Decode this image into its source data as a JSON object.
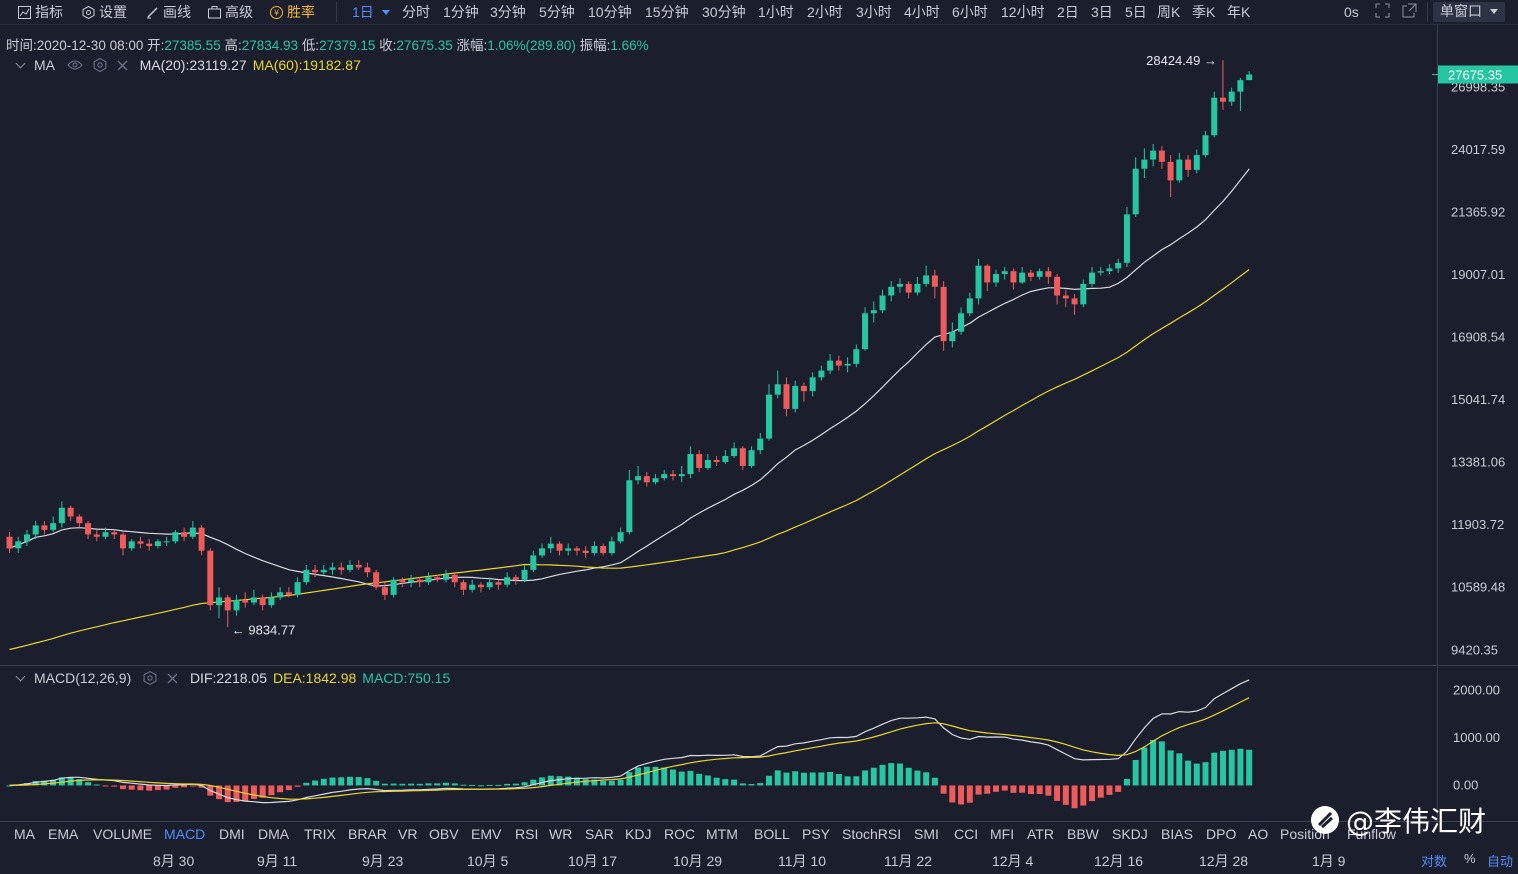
{
  "toolbar": {
    "indicators": "指标",
    "settings": "设置",
    "draw": "画线",
    "advanced": "高级",
    "winrate": "胜率",
    "interval": "1日",
    "periods": [
      "分时",
      "1分钟",
      "3分钟",
      "5分钟",
      "10分钟",
      "15分钟",
      "30分钟",
      "1小时",
      "2小时",
      "3小时",
      "4小时",
      "6小时",
      "12小时",
      "2日",
      "3日",
      "5日",
      "周K",
      "季K",
      "年K"
    ],
    "countdown": "0s",
    "window_mode": "单窗口"
  },
  "info": {
    "time_label": "时间:",
    "time": "2020-12-30 08:00",
    "open_label": "开:",
    "open": "27385.55",
    "high_label": "高:",
    "high": "27834.93",
    "low_label": "低:",
    "low": "27379.15",
    "close_label": "收:",
    "close": "27675.35",
    "change_label": "涨幅:",
    "change": "1.06%(289.80)",
    "amp_label": "振幅:",
    "amp": "1.66%"
  },
  "ma_legend": {
    "name": "MA",
    "ma20": "MA(20):23119.27",
    "ma60": "MA(60):19182.87"
  },
  "macd_legend": {
    "name": "MACD(12,26,9)",
    "dif": "DIF:2218.05",
    "dea": "DEA:1842.98",
    "macd": "MACD:750.15"
  },
  "colors": {
    "up": "#26c6a2",
    "down": "#ef5a5a",
    "ma20": "#d9dbe3",
    "ma60": "#e8d72a",
    "accent": "#4f8ff7",
    "background": "#1b1e2d"
  },
  "chart_data": [
    {
      "type": "candlestick",
      "title": "",
      "y_ticks": [
        9420.35,
        10589.48,
        11903.72,
        13381.06,
        15041.74,
        16908.54,
        19007.01,
        21365.92,
        24017.59,
        26998.35
      ],
      "y_ticks_labels": [
        "9420.35",
        "10589.48",
        "11903.72",
        "13381.06",
        "15041.74",
        "16908.54",
        "19007.01",
        "21365.92",
        "24017.59",
        "26998.35"
      ],
      "ylim": [
        9250,
        29300
      ],
      "scale": "log",
      "x_ticks": [
        "8月 30",
        "9月 11",
        "9月 23",
        "10月 5",
        "10月 17",
        "10月 29",
        "11月 10",
        "11月 22",
        "12月 4",
        "12月 16",
        "12月 28",
        "1月 9"
      ],
      "last_price_label": "27675.35",
      "high_marker": "28424.49 →",
      "low_marker": "← 9834.77",
      "series": [
        {
          "name": "MA(20)",
          "last": 23119.27
        },
        {
          "name": "MA(60)",
          "last": 19182.87
        }
      ],
      "candles": [
        [
          11650,
          11400,
          11750,
          11300
        ],
        [
          11400,
          11550,
          11650,
          11300
        ],
        [
          11550,
          11700,
          11800,
          11450
        ],
        [
          11700,
          11900,
          12000,
          11600
        ],
        [
          11900,
          11800,
          12000,
          11700
        ],
        [
          11800,
          11950,
          12100,
          11750
        ],
        [
          11950,
          12300,
          12450,
          11850
        ],
        [
          12300,
          12100,
          12350,
          12000
        ],
        [
          12100,
          11950,
          12150,
          11850
        ],
        [
          11950,
          11700,
          12000,
          11600
        ],
        [
          11700,
          11650,
          11800,
          11550
        ],
        [
          11650,
          11750,
          11850,
          11600
        ],
        [
          11750,
          11700,
          11800,
          11600
        ],
        [
          11700,
          11400,
          11750,
          11250
        ],
        [
          11400,
          11550,
          11600,
          11350
        ],
        [
          11550,
          11500,
          11650,
          11400
        ],
        [
          11500,
          11450,
          11600,
          11350
        ],
        [
          11450,
          11550,
          11600,
          11400
        ],
        [
          11550,
          11550,
          11650,
          11450
        ],
        [
          11550,
          11750,
          11800,
          11500
        ],
        [
          11750,
          11650,
          11850,
          11550
        ],
        [
          11650,
          11850,
          12000,
          11600
        ],
        [
          11850,
          11350,
          11900,
          11250
        ],
        [
          11350,
          10250,
          11400,
          10150
        ],
        [
          10250,
          10400,
          10600,
          10000
        ],
        [
          10400,
          10150,
          10450,
          9834
        ],
        [
          10150,
          10350,
          10450,
          10050
        ],
        [
          10350,
          10300,
          10500,
          10200
        ],
        [
          10300,
          10400,
          10550,
          10250
        ],
        [
          10400,
          10250,
          10450,
          10150
        ],
        [
          10250,
          10400,
          10500,
          10200
        ],
        [
          10400,
          10500,
          10600,
          10350
        ],
        [
          10500,
          10450,
          10600,
          10400
        ],
        [
          10450,
          10700,
          10800,
          10400
        ],
        [
          10700,
          10950,
          11050,
          10650
        ],
        [
          10950,
          10900,
          11050,
          10800
        ],
        [
          10900,
          10950,
          11050,
          10850
        ],
        [
          10950,
          11000,
          11100,
          10850
        ],
        [
          11000,
          10950,
          11100,
          10850
        ],
        [
          10950,
          11050,
          11150,
          10900
        ],
        [
          11050,
          11000,
          11150,
          10950
        ],
        [
          11000,
          10900,
          11100,
          10800
        ],
        [
          10900,
          10600,
          10950,
          10550
        ],
        [
          10600,
          10450,
          10700,
          10350
        ],
        [
          10450,
          10750,
          10800,
          10400
        ],
        [
          10750,
          10700,
          10800,
          10600
        ],
        [
          10700,
          10750,
          10850,
          10600
        ],
        [
          10750,
          10700,
          10800,
          10600
        ],
        [
          10700,
          10800,
          10900,
          10650
        ],
        [
          10800,
          10750,
          10850,
          10700
        ],
        [
          10750,
          10850,
          10950,
          10700
        ],
        [
          10850,
          10700,
          10900,
          10600
        ],
        [
          10700,
          10550,
          10750,
          10450
        ],
        [
          10550,
          10650,
          10750,
          10500
        ],
        [
          10650,
          10600,
          10700,
          10500
        ],
        [
          10600,
          10700,
          10800,
          10550
        ],
        [
          10700,
          10650,
          10750,
          10550
        ],
        [
          10650,
          10800,
          10900,
          10600
        ],
        [
          10800,
          10750,
          10850,
          10650
        ],
        [
          10750,
          10950,
          11050,
          10700
        ],
        [
          10950,
          11250,
          11350,
          10900
        ],
        [
          11250,
          11400,
          11500,
          11200
        ],
        [
          11400,
          11500,
          11650,
          11300
        ],
        [
          11500,
          11350,
          11550,
          11250
        ],
        [
          11350,
          11400,
          11500,
          11250
        ],
        [
          11400,
          11350,
          11450,
          11250
        ],
        [
          11350,
          11300,
          11450,
          11200
        ],
        [
          11300,
          11450,
          11550,
          11250
        ],
        [
          11450,
          11300,
          11500,
          11250
        ],
        [
          11300,
          11550,
          11650,
          11250
        ],
        [
          11550,
          11750,
          11850,
          11500
        ],
        [
          11750,
          12950,
          13200,
          11700
        ],
        [
          12950,
          13050,
          13300,
          12850
        ],
        [
          13050,
          12900,
          13150,
          12800
        ],
        [
          12900,
          13000,
          13100,
          12850
        ],
        [
          13000,
          13100,
          13200,
          12950
        ],
        [
          13100,
          13050,
          13200,
          12950
        ],
        [
          13050,
          13100,
          13300,
          12900
        ],
        [
          13100,
          13600,
          13800,
          13000
        ],
        [
          13600,
          13250,
          13700,
          13150
        ],
        [
          13250,
          13450,
          13600,
          13200
        ],
        [
          13450,
          13400,
          13550,
          13300
        ],
        [
          13400,
          13550,
          13700,
          13350
        ],
        [
          13550,
          13750,
          13900,
          13500
        ],
        [
          13750,
          13300,
          13800,
          13200
        ],
        [
          13300,
          13700,
          13800,
          13250
        ],
        [
          13700,
          14000,
          14150,
          13600
        ],
        [
          14000,
          15200,
          15500,
          13950
        ],
        [
          15200,
          15500,
          15900,
          15100
        ],
        [
          15500,
          14800,
          15700,
          14600
        ],
        [
          14800,
          15450,
          15600,
          14700
        ],
        [
          15450,
          15300,
          15550,
          15000
        ],
        [
          15300,
          15700,
          15850,
          15150
        ],
        [
          15700,
          15900,
          16050,
          15600
        ],
        [
          15900,
          16200,
          16400,
          15800
        ],
        [
          16200,
          16050,
          16350,
          15900
        ],
        [
          16050,
          16100,
          16300,
          15850
        ],
        [
          16100,
          16550,
          16700,
          16000
        ],
        [
          16550,
          17700,
          17900,
          16500
        ],
        [
          17700,
          17800,
          18100,
          17400
        ],
        [
          17800,
          18300,
          18500,
          17700
        ],
        [
          18300,
          18600,
          18800,
          18100
        ],
        [
          18600,
          18700,
          18900,
          18400
        ],
        [
          18700,
          18400,
          18800,
          18200
        ],
        [
          18400,
          18700,
          18950,
          18300
        ],
        [
          18700,
          19000,
          19350,
          18600
        ],
        [
          19000,
          18600,
          19200,
          18200
        ],
        [
          18600,
          16800,
          18800,
          16500
        ],
        [
          16800,
          17100,
          17400,
          16600
        ],
        [
          17100,
          17700,
          17900,
          17000
        ],
        [
          17700,
          18200,
          18400,
          17600
        ],
        [
          18200,
          19350,
          19600,
          18000
        ],
        [
          19350,
          18750,
          19400,
          18450
        ],
        [
          18750,
          19050,
          19200,
          18600
        ],
        [
          19050,
          19150,
          19300,
          18850
        ],
        [
          19150,
          18750,
          19250,
          18500
        ],
        [
          18750,
          19100,
          19300,
          18700
        ],
        [
          19100,
          18950,
          19200,
          18800
        ],
        [
          18950,
          19150,
          19250,
          18850
        ],
        [
          19150,
          18950,
          19300,
          18700
        ],
        [
          18950,
          18300,
          19050,
          18000
        ],
        [
          18300,
          18200,
          18500,
          17900
        ],
        [
          18200,
          18000,
          18350,
          17650
        ],
        [
          18000,
          18700,
          18850,
          17900
        ],
        [
          18700,
          19100,
          19300,
          18600
        ],
        [
          19100,
          19150,
          19300,
          19000
        ],
        [
          19150,
          19250,
          19400,
          19050
        ],
        [
          19250,
          19450,
          19600,
          19100
        ],
        [
          19450,
          21300,
          21600,
          19300
        ],
        [
          21300,
          23200,
          23700,
          21200
        ],
        [
          23200,
          23600,
          24100,
          22800
        ],
        [
          23600,
          24000,
          24300,
          23300
        ],
        [
          24000,
          23500,
          24200,
          23200
        ],
        [
          23500,
          22700,
          23800,
          22000
        ],
        [
          22700,
          23600,
          23900,
          22600
        ],
        [
          23600,
          23150,
          23800,
          22850
        ],
        [
          23150,
          23800,
          24050,
          23000
        ],
        [
          23800,
          24700,
          24900,
          23700
        ],
        [
          24700,
          26500,
          26800,
          24600
        ],
        [
          26500,
          26300,
          28424,
          25900
        ],
        [
          26300,
          26800,
          27000,
          26100
        ],
        [
          26800,
          27385,
          27500,
          25850
        ],
        [
          27385,
          27675,
          27835,
          27379
        ]
      ]
    },
    {
      "type": "macd",
      "title": "",
      "y_ticks": [
        0,
        1000,
        2000
      ],
      "y_ticks_labels": [
        "0.00",
        "1000.00",
        "2000.00"
      ],
      "ylim": [
        -600,
        2300
      ],
      "dif_last": 2218.05,
      "dea_last": 1842.98,
      "macd_last": 750.15
    }
  ],
  "indicator_tabs": [
    "MA",
    "EMA",
    "VOLUME",
    "MACD",
    "DMI",
    "DMA",
    "TRIX",
    "BRAR",
    "VR",
    "OBV",
    "EMV",
    "RSI",
    "WR",
    "SAR",
    "KDJ",
    "ROC",
    "MTM",
    "BOLL",
    "PSY",
    "StochRSI",
    "SMI",
    "CCI",
    "MFI",
    "ATR",
    "BBW",
    "SKDJ",
    "BIAS",
    "DPO",
    "AO",
    "Position",
    "Funflow"
  ],
  "active_indicator": "MACD",
  "footer": {
    "log": "对数",
    "pct": "%",
    "auto": "自动"
  },
  "watermark": "@李伟汇财"
}
